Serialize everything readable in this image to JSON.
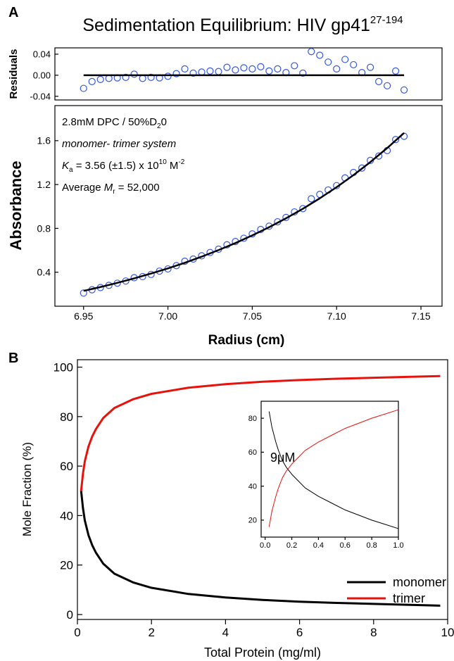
{
  "chart_data": [
    {
      "type": "scatter",
      "panel_label": "A",
      "title": "Sedimentation Equilibrium: HIV gp41",
      "title_superscript": "27-194",
      "ylabel": "Residuals",
      "label_color": "#1a4fe8",
      "xlim": [
        6.933,
        7.1625
      ],
      "ylim": [
        -0.047,
        0.052
      ],
      "yticks": [
        0.04,
        {
          "value": 0,
          "label": "0.00"
        },
        -0.04
      ],
      "series": [
        {
          "style": "markers",
          "color": "#3557e0",
          "x": [
            6.95,
            6.955,
            6.96,
            6.965,
            6.97,
            6.975,
            6.98,
            6.985,
            6.99,
            6.995,
            7.0,
            7.005,
            7.01,
            7.015,
            7.02,
            7.025,
            7.03,
            7.035,
            7.04,
            7.045,
            7.05,
            7.055,
            7.06,
            7.065,
            7.07,
            7.075,
            7.08,
            7.085,
            7.09,
            7.095,
            7.1,
            7.105,
            7.11,
            7.115,
            7.12,
            7.125,
            7.13,
            7.135,
            7.14
          ],
          "values": [
            -0.025,
            -0.012,
            -0.008,
            -0.006,
            -0.005,
            -0.004,
            0.002,
            -0.006,
            -0.004,
            -0.005,
            -0.002,
            0.003,
            0.012,
            0.004,
            0.006,
            0.008,
            0.007,
            0.015,
            0.01,
            0.014,
            0.012,
            0.016,
            0.008,
            0.012,
            0.005,
            0.018,
            0.004,
            0.045,
            0.038,
            0.025,
            0.012,
            0.03,
            0.02,
            0.005,
            0.015,
            -0.012,
            -0.02,
            0.008,
            -0.028
          ]
        },
        {
          "style": "line",
          "color": "#000000",
          "x": [
            6.95,
            7.14
          ],
          "values": [
            0,
            0
          ]
        }
      ]
    },
    {
      "type": "scatter",
      "xlabel": "Radius (cm)",
      "ylabel": "Absorbance",
      "label_color": "#1a4fe8",
      "annotations": [
        [
          "2.8mM DPC / 50%D",
          "2",
          "0"
        ],
        [
          "monomer- trimer system"
        ],
        [
          "K",
          "a",
          " = 3.56 (±1.5) x 10",
          "10",
          " M",
          "-2"
        ],
        [
          "Average ",
          "M",
          "r",
          " = 52,000"
        ]
      ],
      "xlim": [
        6.933,
        7.1625
      ],
      "ylim": [
        0.09,
        1.92
      ],
      "xticks": [
        6.95,
        {
          "value": 7.0,
          "label": "7.00"
        },
        7.05,
        {
          "value": 7.1,
          "label": "7.10"
        },
        7.15
      ],
      "yticks": [
        0.4,
        0.8,
        1.2,
        1.6
      ],
      "series": [
        {
          "style": "markers",
          "color": "#3557e0",
          "x": [
            6.95,
            6.955,
            6.96,
            6.965,
            6.97,
            6.975,
            6.98,
            6.985,
            6.99,
            6.995,
            7.0,
            7.005,
            7.01,
            7.015,
            7.02,
            7.025,
            7.03,
            7.035,
            7.04,
            7.045,
            7.05,
            7.055,
            7.06,
            7.065,
            7.07,
            7.075,
            7.08,
            7.085,
            7.09,
            7.095,
            7.1,
            7.105,
            7.11,
            7.115,
            7.12,
            7.125,
            7.13,
            7.135,
            7.14
          ],
          "values": [
            0.21,
            0.24,
            0.26,
            0.28,
            0.3,
            0.32,
            0.35,
            0.36,
            0.38,
            0.41,
            0.43,
            0.46,
            0.5,
            0.52,
            0.55,
            0.58,
            0.61,
            0.65,
            0.68,
            0.71,
            0.75,
            0.79,
            0.82,
            0.86,
            0.9,
            0.95,
            0.98,
            1.07,
            1.11,
            1.15,
            1.19,
            1.26,
            1.31,
            1.35,
            1.42,
            1.46,
            1.51,
            1.61,
            1.64
          ]
        },
        {
          "style": "line",
          "color": "#000000",
          "x": [
            6.95,
            6.96,
            6.97,
            6.98,
            6.99,
            7.0,
            7.01,
            7.02,
            7.03,
            7.04,
            7.05,
            7.06,
            7.07,
            7.08,
            7.09,
            7.1,
            7.11,
            7.12,
            7.13,
            7.14
          ],
          "values": [
            0.23,
            0.265,
            0.303,
            0.344,
            0.388,
            0.435,
            0.486,
            0.542,
            0.602,
            0.666,
            0.736,
            0.811,
            0.892,
            0.979,
            1.074,
            1.176,
            1.286,
            1.405,
            1.533,
            1.671
          ]
        }
      ]
    },
    {
      "type": "line",
      "panel_label": "B",
      "xlabel": "Total Protein (mg/ml)",
      "ylabel": "Mole Fraction (%)",
      "legend": "lower right",
      "xlim": [
        0,
        10
      ],
      "ylim": [
        -2,
        103
      ],
      "xticks": [
        0,
        2,
        4,
        6,
        8,
        10
      ],
      "yticks": [
        0,
        20,
        40,
        60,
        80,
        100
      ],
      "series": [
        {
          "name": "monomer",
          "style": "line",
          "color": "#000000",
          "x": [
            0.1,
            0.15,
            0.2,
            0.3,
            0.4,
            0.5,
            0.7,
            1,
            1.5,
            2,
            3,
            4,
            5,
            6,
            7,
            8,
            9,
            9.8
          ],
          "values": [
            50,
            43,
            38,
            32,
            28,
            25,
            20.5,
            16.5,
            13,
            10.8,
            8.3,
            6.9,
            5.9,
            5.2,
            4.7,
            4.3,
            3.9,
            3.6
          ]
        },
        {
          "name": "trimer",
          "style": "line",
          "color": "#e8120c",
          "x": [
            0.1,
            0.15,
            0.2,
            0.3,
            0.4,
            0.5,
            0.7,
            1,
            1.5,
            2,
            3,
            4,
            5,
            6,
            7,
            8,
            9,
            9.8
          ],
          "values": [
            50,
            57,
            62,
            68,
            72,
            75,
            79.5,
            83.5,
            87,
            89.2,
            91.7,
            93.1,
            94.1,
            94.8,
            95.3,
            95.7,
            96.1,
            96.4
          ]
        }
      ]
    },
    {
      "type": "line",
      "annotation": "9μM",
      "xlim": [
        -0.03,
        1.0
      ],
      "ylim": [
        10,
        90
      ],
      "xticks": [
        {
          "value": 0,
          "label": "0.0"
        },
        0.2,
        0.4,
        0.6,
        0.8,
        {
          "value": 1,
          "label": "1.0"
        }
      ],
      "yticks": [
        20,
        40,
        60,
        80
      ],
      "series": [
        {
          "style": "line",
          "color": "#000000",
          "x": [
            0.03,
            0.05,
            0.08,
            0.1,
            0.13,
            0.16,
            0.2,
            0.25,
            0.3,
            0.4,
            0.5,
            0.6,
            0.7,
            0.8,
            0.9,
            1.0
          ],
          "values": [
            84,
            75,
            66,
            61,
            55,
            51,
            47,
            43,
            39,
            34,
            30,
            26,
            23,
            20,
            17.5,
            15
          ]
        },
        {
          "style": "line",
          "color": "#e8120c",
          "x": [
            0.03,
            0.05,
            0.08,
            0.1,
            0.13,
            0.16,
            0.2,
            0.25,
            0.3,
            0.4,
            0.5,
            0.6,
            0.7,
            0.8,
            0.9,
            1.0
          ],
          "values": [
            16,
            25,
            34,
            39,
            45,
            49,
            53,
            57,
            61,
            66,
            70,
            74,
            77,
            80,
            82.5,
            85
          ]
        }
      ]
    }
  ]
}
